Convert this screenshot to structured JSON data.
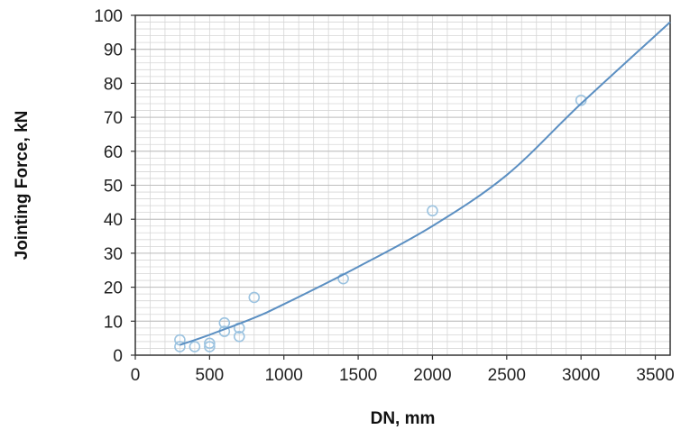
{
  "chart_data": {
    "type": "scatter",
    "title": "",
    "xlabel": "DN, mm",
    "ylabel": "Jointing Force, kN",
    "xlim": [
      0,
      3600
    ],
    "ylim": [
      0,
      100
    ],
    "x_ticks": [
      0,
      500,
      1000,
      1500,
      2000,
      2500,
      3000,
      3500
    ],
    "y_ticks": [
      0,
      10,
      20,
      30,
      40,
      50,
      60,
      70,
      80,
      90,
      100
    ],
    "x_minor_step": 100,
    "y_minor_step": 2,
    "grid": true,
    "legend": "none",
    "colors": {
      "points": "#9cc3e0",
      "trendline": "#5b8fc2",
      "grid_minor": "#d6d6d6",
      "grid_major": "#bdbdbd",
      "frame": "#333333"
    },
    "series": [
      {
        "type": "scatter",
        "points": [
          {
            "x": 300,
            "y": 4.5
          },
          {
            "x": 300,
            "y": 2.5
          },
          {
            "x": 400,
            "y": 2.5
          },
          {
            "x": 500,
            "y": 3.5
          },
          {
            "x": 500,
            "y": 2.5
          },
          {
            "x": 600,
            "y": 9.5
          },
          {
            "x": 600,
            "y": 7
          },
          {
            "x": 700,
            "y": 8
          },
          {
            "x": 700,
            "y": 5.5
          },
          {
            "x": 800,
            "y": 17
          },
          {
            "x": 1400,
            "y": 22.5
          },
          {
            "x": 2000,
            "y": 42.5
          },
          {
            "x": 3000,
            "y": 75
          }
        ]
      },
      {
        "type": "line",
        "points": [
          {
            "x": 300,
            "y": 3
          },
          {
            "x": 500,
            "y": 6
          },
          {
            "x": 800,
            "y": 11
          },
          {
            "x": 1000,
            "y": 15
          },
          {
            "x": 1500,
            "y": 26
          },
          {
            "x": 2000,
            "y": 38
          },
          {
            "x": 2500,
            "y": 53
          },
          {
            "x": 3000,
            "y": 74
          },
          {
            "x": 3600,
            "y": 98
          }
        ]
      }
    ]
  }
}
